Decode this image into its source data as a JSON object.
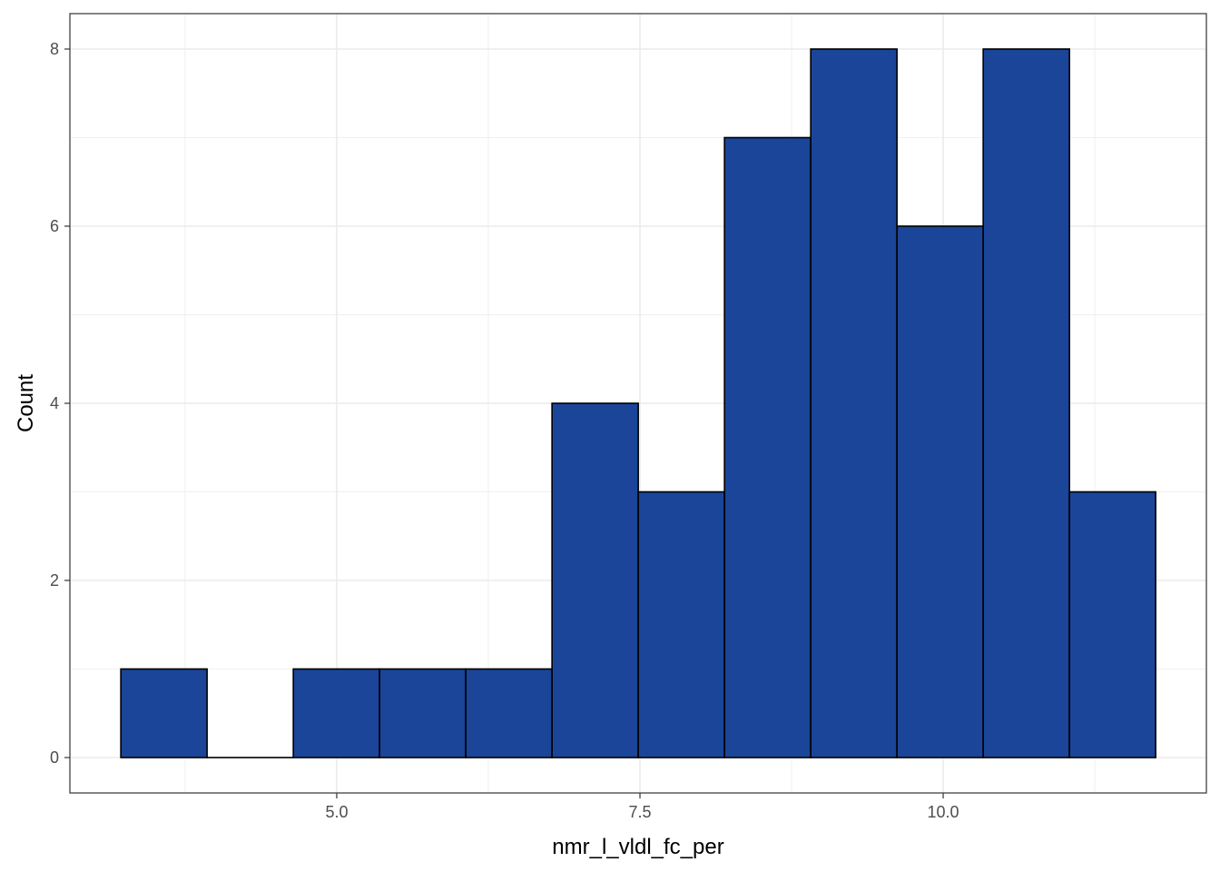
{
  "chart_data": {
    "type": "bar",
    "variant": "histogram",
    "xlabel": "nmr_l_vldl_fc_per",
    "ylabel": "Count",
    "bin_width": 0.711,
    "bins": [
      {
        "x0": 3.22,
        "x1": 3.931,
        "count": 1
      },
      {
        "x0": 3.931,
        "x1": 4.642,
        "count": 0
      },
      {
        "x0": 4.642,
        "x1": 5.353,
        "count": 1
      },
      {
        "x0": 5.353,
        "x1": 6.064,
        "count": 1
      },
      {
        "x0": 6.064,
        "x1": 6.775,
        "count": 1
      },
      {
        "x0": 6.775,
        "x1": 7.486,
        "count": 4
      },
      {
        "x0": 7.486,
        "x1": 8.197,
        "count": 3
      },
      {
        "x0": 8.197,
        "x1": 8.908,
        "count": 7
      },
      {
        "x0": 8.908,
        "x1": 9.619,
        "count": 8
      },
      {
        "x0": 9.619,
        "x1": 10.33,
        "count": 6
      },
      {
        "x0": 10.33,
        "x1": 11.041,
        "count": 8
      },
      {
        "x0": 11.041,
        "x1": 11.752,
        "count": 3
      }
    ],
    "xlim": [
      2.8,
      12.17
    ],
    "ylim": [
      -0.4,
      8.4
    ],
    "x_ticks": [
      {
        "value": 5.0,
        "label": "5.0"
      },
      {
        "value": 7.5,
        "label": "7.5"
      },
      {
        "value": 10.0,
        "label": "10.0"
      }
    ],
    "x_minor_ticks": [
      3.75,
      6.25,
      8.75,
      11.25
    ],
    "y_ticks": [
      {
        "value": 0,
        "label": "0"
      },
      {
        "value": 2,
        "label": "2"
      },
      {
        "value": 4,
        "label": "4"
      },
      {
        "value": 6,
        "label": "6"
      },
      {
        "value": 8,
        "label": "8"
      }
    ],
    "y_minor_ticks": [
      1,
      3,
      5,
      7
    ],
    "grid": true,
    "colors": {
      "fill": "#1a4599",
      "outline": "#000000",
      "grid": "#ebebeb",
      "panel_border": "#333333"
    }
  }
}
